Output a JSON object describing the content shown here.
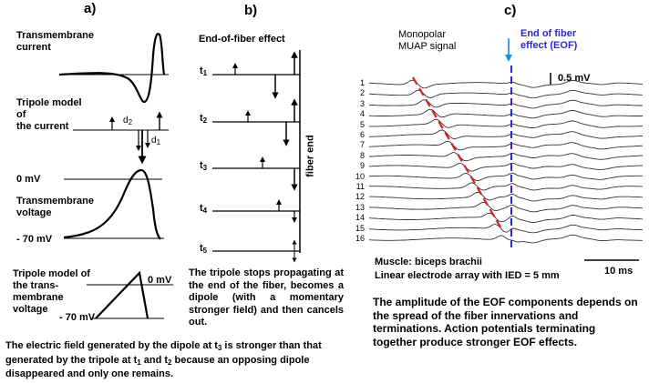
{
  "colors": {
    "red_dashed": "#d62020",
    "blue": "#2a2acc",
    "arrow_blue": "#1a8bd6"
  },
  "panel_a": {
    "label": "a)",
    "current_label": "Transmembrane\ncurrent",
    "tripole_label": "Tripole model\nof\nthe current",
    "d2": "d2",
    "d1": "d1",
    "zero_mv": "0 mV",
    "voltage_label": "Transmembrane\nvoltage",
    "minus70": "- 70 mV",
    "tripole2_label": "Tripole model of\nthe trans-\nmembrane\nvoltage",
    "zero_mv_2": "0 mV",
    "minus70_2": "- 70 mV",
    "caption": "The electric field generated by the dipole at t3 is stronger than that generated by the tripole at t1 and t2 because an opposing dipole disappeared and only one remains."
  },
  "panel_b": {
    "label": "b)",
    "title": "End-of-fiber effect",
    "times": [
      "t1",
      "t2",
      "t3",
      "t4",
      "t5"
    ],
    "fiber_end": "fiber end",
    "caption": "The tripole stops propagating at the end of the fiber, becomes a dipole (with a momentary stronger field) and then cancels out."
  },
  "panel_c": {
    "label": "c)",
    "title": "Monopolar\nMUAP signal",
    "eof_label": "End of fiber\neffect (EOF)",
    "scale_mv": "0.5 mV",
    "channels": [
      "1",
      "2",
      "3",
      "4",
      "5",
      "6",
      "7",
      "8",
      "9",
      "10",
      "11",
      "12",
      "13",
      "14",
      "15",
      "16"
    ],
    "muscle": "Muscle: biceps brachii",
    "array": "Linear electrode array with IED = 5 mm",
    "scale_ms": "10 ms",
    "caption": "The amplitude of the EOF components depends on the spread of the fiber innervations and terminations. Action potentials terminating together produce stronger EOF effects."
  }
}
